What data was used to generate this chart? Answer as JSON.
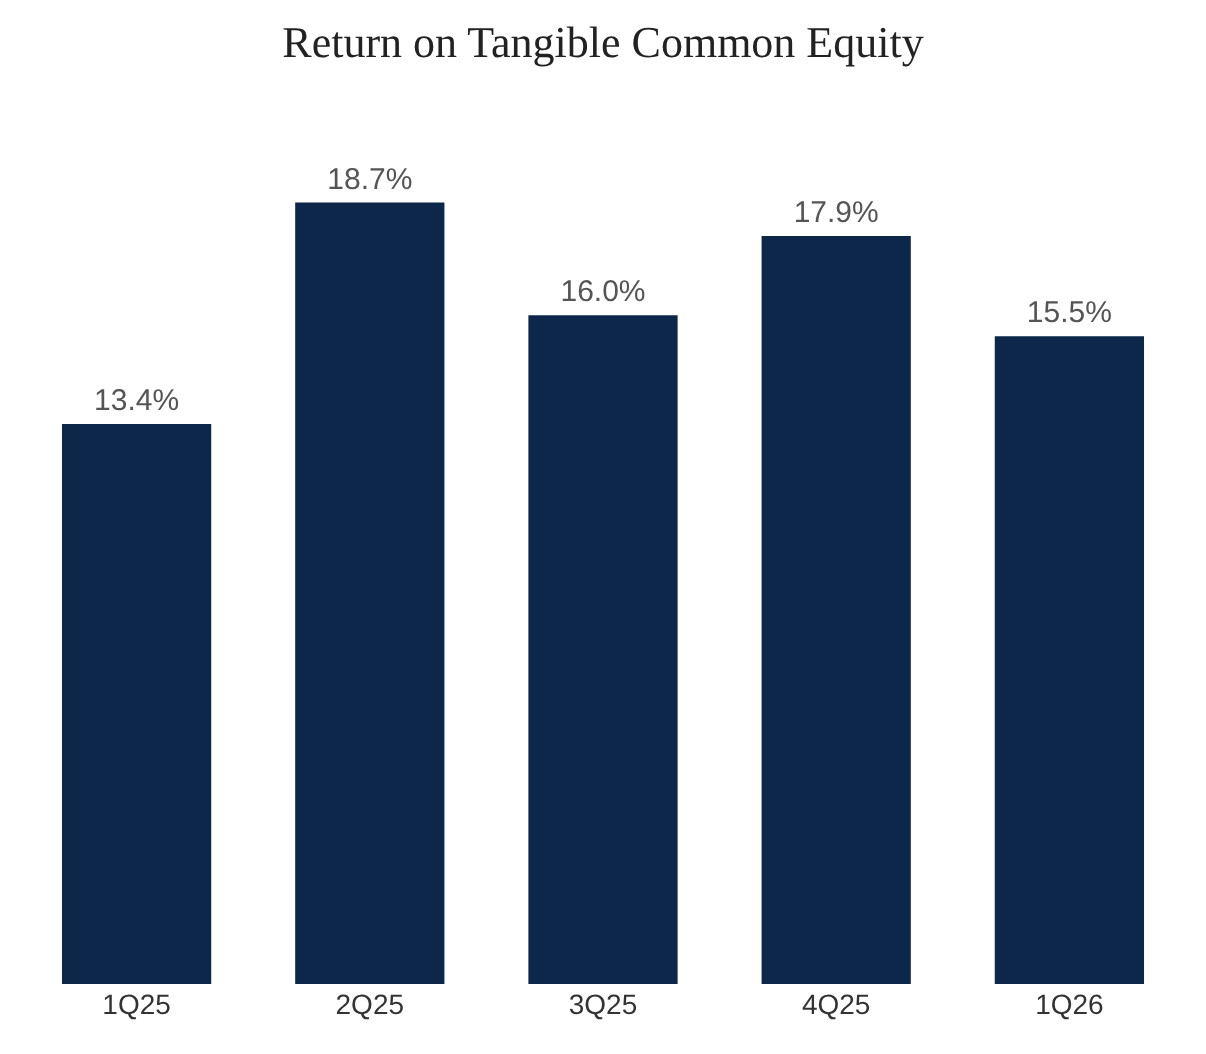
{
  "chart_data": {
    "type": "bar",
    "title": "Return on Tangible Common Equity",
    "categories": [
      "1Q25",
      "2Q25",
      "3Q25",
      "4Q25",
      "1Q26"
    ],
    "values": [
      13.4,
      18.7,
      16.0,
      17.9,
      15.5
    ],
    "value_labels": [
      "13.4%",
      "18.7%",
      "16.0%",
      "17.9%",
      "15.5%"
    ],
    "color": "#0c2749"
  }
}
